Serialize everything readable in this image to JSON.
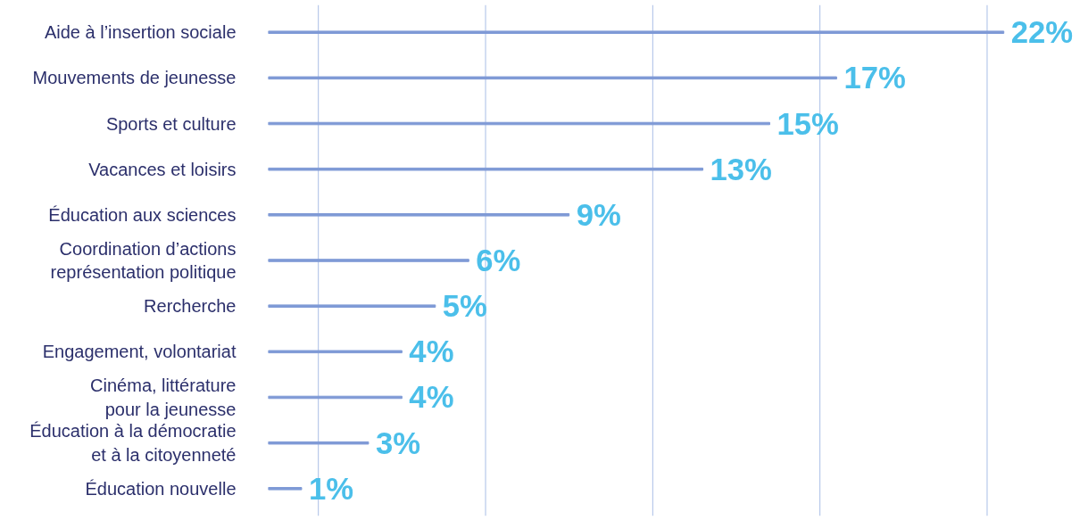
{
  "chart_data": {
    "type": "bar",
    "orientation": "horizontal",
    "categories": [
      "Aide à l’insertion sociale",
      "Mouvements de jeunesse",
      "Sports et culture",
      "Vacances et loisirs",
      "Éducation aux sciences",
      "Coordination d’actions\nreprésentation politique",
      "Rercherche",
      "Engagement, volontariat",
      "Cinéma, littérature\npour la jeunesse",
      "Éducation à la démocratie\net à la citoyenneté",
      "Éducation nouvelle"
    ],
    "values": [
      22,
      17,
      15,
      13,
      9,
      6,
      5,
      4,
      4,
      3,
      1
    ],
    "value_labels": [
      "22%",
      "17%",
      "15%",
      "13%",
      "9%",
      "6%",
      "5%",
      "4%",
      "4%",
      "3%",
      "1%"
    ],
    "color": "#7f9ad6",
    "ref_lines": [
      {
        "axis": "x",
        "value": 1.5,
        "color": "#a9bde6"
      },
      {
        "axis": "x",
        "value": 6.5,
        "color": "#a9bde6"
      },
      {
        "axis": "x",
        "value": 11.5,
        "color": "#a9bde6"
      },
      {
        "axis": "x",
        "value": 16.5,
        "color": "#a9bde6"
      },
      {
        "axis": "x",
        "value": 21.5,
        "color": "#a9bde6"
      }
    ]
  }
}
